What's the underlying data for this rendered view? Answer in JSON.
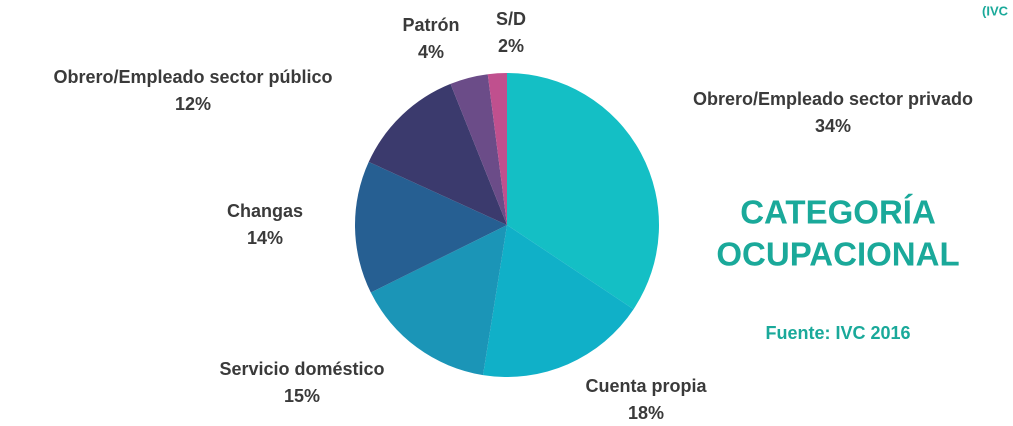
{
  "chart_data": {
    "type": "pie",
    "title": [
      "CATEGORÍA",
      "OCUPACIONAL"
    ],
    "source": "Fuente: IVC 2016",
    "corner_text": "(IVC",
    "categories": [
      "Obrero/Empleado sector privado",
      "Cuenta propia",
      "Servicio doméstico",
      "Changas",
      "Obrero/Empleado sector público",
      "Patrón",
      "S/D"
    ],
    "values": [
      34,
      18,
      15,
      14,
      12,
      4,
      2
    ],
    "value_labels": [
      "34%",
      "18%",
      "15%",
      "14%",
      "12%",
      "4%",
      "2%"
    ],
    "colors": [
      "#14bfc5",
      "#10b0c8",
      "#1b95b7",
      "#265f92",
      "#3b3a6d",
      "#6b4c88",
      "#c0508e"
    ]
  }
}
